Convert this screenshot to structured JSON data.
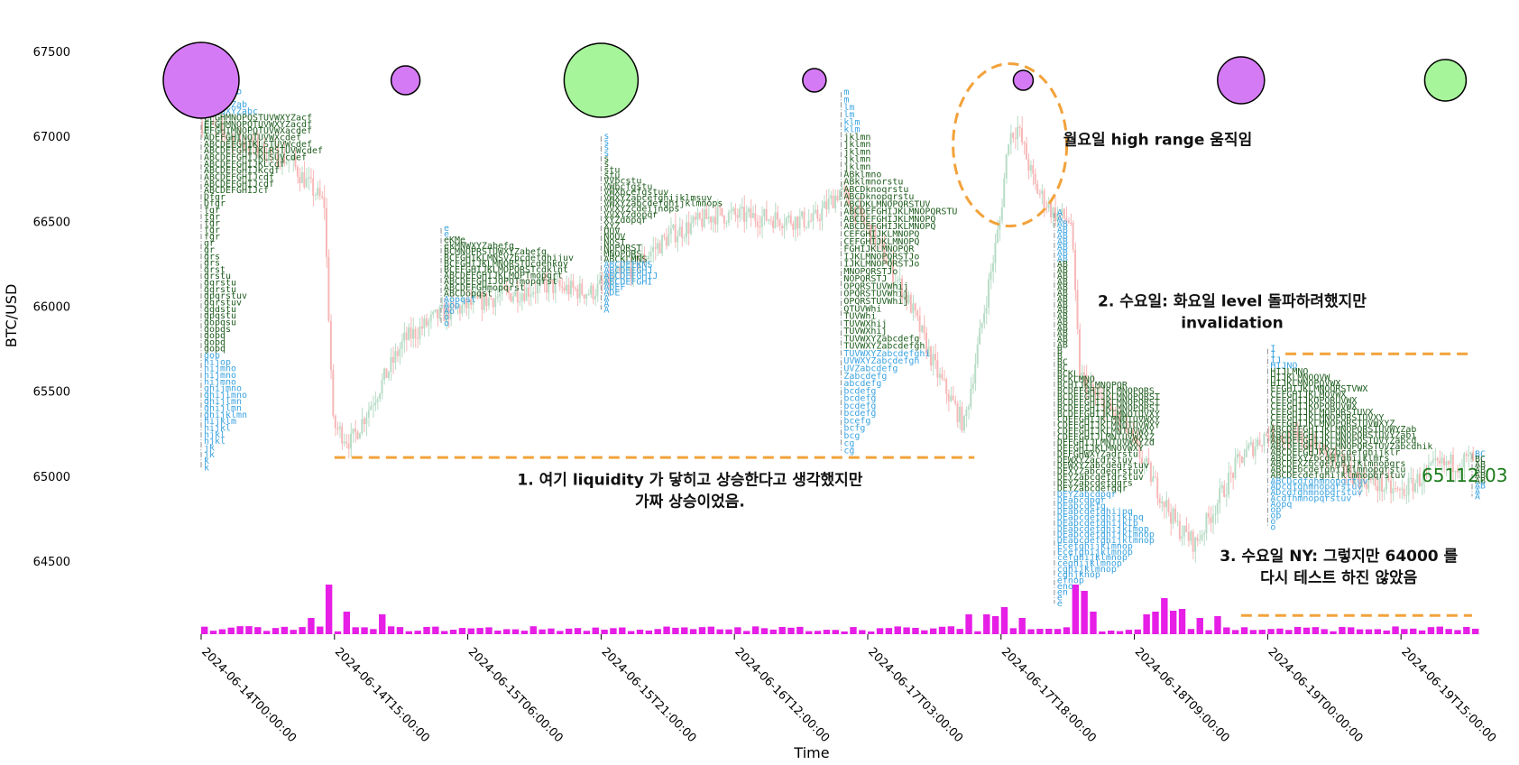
{
  "colors": {
    "bull_candle": "#b7dcc6",
    "bear_candle": "#f7b7b7",
    "volume": "#e61ee6",
    "tpo_blue": "#3aa3e0",
    "tpo_green": "#1c5c1c",
    "poc_line": "#8f8f8f",
    "level": "#f2a23a",
    "circle_purple": "#d57af5",
    "circle_green": "#a6f59a",
    "price_label": "#1a7a1a"
  },
  "chart_data": {
    "type": "candlestick",
    "xlabel": "Time",
    "ylabel": "BTC/USD",
    "ylim": [
      64080,
      67580
    ],
    "y_ticks": [
      64500,
      65000,
      65500,
      66000,
      66500,
      67000,
      67500
    ],
    "x_ticks": [
      "2024-06-14T00:00:00",
      "2024-06-14T15:00:00",
      "2024-06-15T06:00:00",
      "2024-06-15T21:00:00",
      "2024-06-16T12:00:00",
      "2024-06-17T03:00:00",
      "2024-06-17T18:00:00",
      "2024-06-18T09:00:00",
      "2024-06-19T00:00:00",
      "2024-06-19T15:00:00"
    ],
    "x_start": "2024-06-14T00:00:00",
    "x_end": "2024-06-19T23:00:00",
    "price_path": [
      [
        "2024-06-14T00:00:00",
        67080
      ],
      [
        "2024-06-14T05:00:00",
        66960
      ],
      [
        "2024-06-14T10:00:00",
        66860
      ],
      [
        "2024-06-14T14:00:00",
        66600
      ],
      [
        "2024-06-14T15:00:00",
        65300
      ],
      [
        "2024-06-14T17:00:00",
        65200
      ],
      [
        "2024-06-14T20:00:00",
        65500
      ],
      [
        "2024-06-14T23:00:00",
        65800
      ],
      [
        "2024-06-15T03:00:00",
        65950
      ],
      [
        "2024-06-15T09:00:00",
        66050
      ],
      [
        "2024-06-15T15:00:00",
        66120
      ],
      [
        "2024-06-15T20:00:00",
        66080
      ],
      [
        "2024-06-16T00:00:00",
        66200
      ],
      [
        "2024-06-16T05:00:00",
        66420
      ],
      [
        "2024-06-16T10:00:00",
        66540
      ],
      [
        "2024-06-16T16:00:00",
        66520
      ],
      [
        "2024-06-16T21:00:00",
        66500
      ],
      [
        "2024-06-17T00:00:00",
        66680
      ],
      [
        "2024-06-17T04:00:00",
        66400
      ],
      [
        "2024-06-17T08:00:00",
        66000
      ],
      [
        "2024-06-17T11:00:00",
        65600
      ],
      [
        "2024-06-17T14:00:00",
        65300
      ],
      [
        "2024-06-17T16:00:00",
        65900
      ],
      [
        "2024-06-17T18:00:00",
        66500
      ],
      [
        "2024-06-17T19:00:00",
        67000
      ],
      [
        "2024-06-17T20:00:00",
        67050
      ],
      [
        "2024-06-17T22:00:00",
        66700
      ],
      [
        "2024-06-18T00:00:00",
        66550
      ],
      [
        "2024-06-18T02:00:00",
        66500
      ],
      [
        "2024-06-18T03:00:00",
        65600
      ],
      [
        "2024-06-18T05:00:00",
        65450
      ],
      [
        "2024-06-18T08:00:00",
        65300
      ],
      [
        "2024-06-18T10:00:00",
        65100
      ],
      [
        "2024-06-18T12:00:00",
        64900
      ],
      [
        "2024-06-18T14:00:00",
        64700
      ],
      [
        "2024-06-18T16:00:00",
        64600
      ],
      [
        "2024-06-18T18:00:00",
        64800
      ],
      [
        "2024-06-18T21:00:00",
        65100
      ],
      [
        "2024-06-19T00:00:00",
        65250
      ],
      [
        "2024-06-19T05:00:00",
        65200
      ],
      [
        "2024-06-19T10:00:00",
        65000
      ],
      [
        "2024-06-19T15:00:00",
        64900
      ],
      [
        "2024-06-19T19:00:00",
        65050
      ],
      [
        "2024-06-19T23:00:00",
        65100
      ]
    ],
    "volume_spikes": [
      [
        "2024-06-14T12:00:00",
        18
      ],
      [
        "2024-06-14T14:00:00",
        55
      ],
      [
        "2024-06-14T16:00:00",
        25
      ],
      [
        "2024-06-14T20:00:00",
        22
      ],
      [
        "2024-06-17T14:00:00",
        22
      ],
      [
        "2024-06-17T16:00:00",
        22
      ],
      [
        "2024-06-17T17:00:00",
        20
      ],
      [
        "2024-06-17T18:00:00",
        30
      ],
      [
        "2024-06-17T20:00:00",
        18
      ],
      [
        "2024-06-18T02:00:00",
        55
      ],
      [
        "2024-06-18T03:00:00",
        48
      ],
      [
        "2024-06-18T04:00:00",
        25
      ],
      [
        "2024-06-18T10:00:00",
        22
      ],
      [
        "2024-06-18T11:00:00",
        25
      ],
      [
        "2024-06-18T12:00:00",
        40
      ],
      [
        "2024-06-18T13:00:00",
        26
      ],
      [
        "2024-06-18T14:00:00",
        28
      ],
      [
        "2024-06-18T16:00:00",
        18
      ],
      [
        "2024-06-18T18:00:00",
        20
      ]
    ],
    "profiles": [
      {
        "time": "2024-06-14T00:00:00",
        "top": 67420,
        "bottom": 65050,
        "poc": 66650,
        "rows": [
          "b",
          "ab",
          "abb",
          "QYab",
          "OPQYZab",
          "QYZab",
          "OPQXYZab",
          "LMNQXYZabc",
          "EFGHMNOPQSTUVWXYZacf",
          "EFGHMNOPQTUVWXYZacdf",
          "EFGHIMNOPQTUVWXacdef",
          "ADEFGHINOTUVWXcdef",
          "ABCDEFGHIKLSTUVWcdef",
          "ABCDEFGHIJKLRSTUVWcdef",
          "ABCDEFGHIJKLSUVcdef",
          "ABCDEFGHIJKLcdf",
          "ABCDEFGHIJKcdf",
          "ABCDEFGHIJcdf",
          "ABCDEFGHIJcdf",
          "ABCDEFGHIJcf",
          "Dfgr",
          "Dfgr",
          "fgr",
          "fgr",
          "fgr",
          "fgr",
          "fgr",
          "gr",
          "gr",
          "grs",
          "grs",
          "grst",
          "grstu",
          "gqrstu",
          "gqrstu",
          "gpqrstuv",
          "gqrstuv",
          "gqdstu",
          "gpqstu",
          "gopqsu",
          "gopqs",
          "gopq",
          "gopq",
          "gopq",
          "gop",
          "hijop",
          "hijmno",
          "hijmno",
          "hijmno",
          "ghijmno",
          "ghijlmno",
          "ghijlmn",
          "ghijlmn",
          "ghijklmn",
          "hijklm",
          "hijkl",
          "hjkl",
          "hjkl",
          "jk",
          "jk",
          "k",
          "k"
        ]
      },
      {
        "time": "2024-06-15T03:00:00",
        "top": 66460,
        "bottom": 65900,
        "poc": 66150,
        "rows": [
          "e",
          "e",
          "eKMe",
          "ekMNWXYZabefg",
          "BCMNOPRSTUWXYZabefg",
          "BCFGHIKLMNSVZbcdefghijuv",
          "BCFGHIJKLMNQRSTUcdehkuv",
          "BCEFGHIJKLMOPQRSTcdklnt",
          "ABCDEFGHIJKLMOPTmopqrt",
          "ABCDEFGHIJOPQTmopqrst",
          "ABCDEFGHmopqrst",
          "ABCDopqst",
          "Aopqst",
          "Aop",
          "Ao",
          "o",
          "o"
        ]
      },
      {
        "time": "2024-06-15T21:00:00",
        "top": 67000,
        "bottom": 65980,
        "poc": 66500,
        "rows": [
          "s",
          "s",
          "s",
          "s",
          "s",
          "s",
          "stu",
          "stu",
          "VVbcstu",
          "VWbcfgstu",
          "VWXbcefgstuv",
          "VWXYZabcefghijklmsuv",
          "VWXYZabcdefghijklmnops",
          "VVXYZcdeijnops",
          "VVXYZdopqr",
          "XYZdopqr",
          "XYZ",
          "OUV",
          "NOUV",
          "NOST",
          "NOPQRST",
          "MNOPQRS",
          "ABCKLMNS",
          "ABCDEFKNS",
          "ABCDEFGHJ",
          "ABCDEFGHIJ",
          "ABCDEFGHI",
          "ADEF",
          "ADE",
          "A",
          "A",
          "A"
        ]
      },
      {
        "time": "2024-06-17T00:00:00",
        "top": 67260,
        "bottom": 65150,
        "poc": 67260,
        "rows": [
          "m",
          "m",
          "lm",
          "lm",
          "klm",
          "klm",
          "jklmn",
          "jklmn",
          "jklmn",
          "jklmn",
          "jklmn",
          "ABklmno",
          "ABklmnorstu",
          "ABCDknoqrstu",
          "ABCDknopqrstu",
          "ABCDKLMNOPQRSTUV",
          "ABCDEFGHIJKLMNOPQRSTU",
          "ABCDEFGHIJKLMNOPQ",
          "ABCDEFGHIJKLMNOPQ",
          "CEFGHIJKLMNOPQ",
          "CEFGHIJKLMNOPQ",
          "FGHIJKLMNOPQR",
          "IJKLMNOPQRSTJo",
          "IJKLMNOPQRSTJo",
          "MNOPQRSTJo",
          "NOPQRSTJ",
          "OPQRSTUVWhij",
          "OPQRSTUVWhij",
          "OPQRSTUVWhij",
          "QTUVWhi",
          "TUVWhi",
          "TUVWXhij",
          "TUVWXhij",
          "TUVWXYZabcdefg",
          "TUVWXYZabcdefgh",
          "TUVWXYZabcdefghi",
          "UVWXYZabcdefgh",
          "UVZabcdefg",
          "Zabcdefg",
          "abcdefg",
          "bcdefg",
          "bcdefg",
          "bcdefg",
          "bcdefg",
          "bcefg",
          "bcfg",
          "bcg",
          "cg",
          "cg"
        ]
      },
      {
        "time": "2024-06-18T00:00:00",
        "top": 66550,
        "bottom": 64250,
        "poc": 65550,
        "rows": [
          "A",
          "A",
          "AB",
          "AB",
          "AB",
          "AB",
          "AB",
          "AB",
          "AB",
          "AB",
          "AB",
          "AB",
          "AB",
          "AB",
          "AB",
          "AB",
          "AB",
          "AB",
          "AB",
          "AB",
          "AB",
          "AB",
          "AB",
          "AB",
          "B",
          "B",
          "BC",
          "BC",
          "BCKL",
          "BCKLMNO",
          "BCHIJKLMNOPQR",
          "BCDEFGHIJKLMNOPQRS",
          "BCDEFGHIJKLMNOPQRST",
          "BCDEFGHIJKLMNOPQRST",
          "BCDEFGHIJKLMNOPQRST",
          "BCDEFGHIJKLMNOTUVXY",
          "CDEFGHIJKLMNOTUVWXY",
          "CDEFGHIJKLMNOTUVWXY",
          "CDEFGHIJKLMNTUVWXY",
          "CDEFGHIJLMNTUVWXYZ",
          "DEFGHIJLMNTUVWXYZd",
          "DEFGHIJKLMNOVWXY",
          "DEFGHWXYZadrstu",
          "DEWXYZacdrstuv",
          "DEWXYZabcdeqrstuv",
          "DEXYZabcdeqrstuv",
          "DEYZabcdefqrstuv",
          "DEYZabcdefgqrs",
          "DEYZabcdefgqr",
          "DEYZabcdpqr",
          "DEabcdpqr",
          "DEabcdefg",
          "DEabcdefghijpq",
          "DEabcdefghijklpq",
          "DEabcdefghijklp",
          "DEabcdefghijklmop",
          "DEabcdefghijklmnop",
          "DEabcdefghijklmnop",
          "Ecefghijklmnop",
          "Ecefghijklmnop",
          "cefghijklmnop",
          "ceghijklmnop",
          "cghijklmnop",
          "cghjknop",
          "efnop",
          "eno",
          "en",
          "e",
          "e"
        ]
      },
      {
        "time": "2024-06-19T00:00:00",
        "top": 65750,
        "bottom": 64700,
        "poc": 65650,
        "rows": [
          "I",
          "I",
          "IJ",
          "HIJNO",
          "HIJLMNO",
          "HIJKLMNOQVW",
          "HIJKLMNOPQVWX",
          "EFGHIJKLMNOQRSTVWX",
          "CEFGHIJKLMOVWX",
          "CEFGHIJKOPQRUVWX",
          "CEFGHIJKOPQRUVWX",
          "CEFGHIJKLMOPQRSTUVX",
          "CEFGHIJKLMNOPQRSTUVXY",
          "CEFGHIJKLMNOPQRSTUVWXYZ",
          "ABCDEFGHIJKLMNOPQRSTUVWYZab",
          "ABCDEFGHIJKLMNOPQRSTUVYZabi",
          "ABCDEFGHIJKLMNOPQSTUVYZabcd",
          "ABCDEFGHIJKLMNOPQRSTUVZabcdhik",
          "ABCDEFGHJXYZbcdefghijklr",
          "ABCDEXYZbcdefghijklmrs",
          "ABCDEXZbcdefghijklmnopqrs",
          "ABCDEbcdefghijklmnopqrstu",
          "ABCDEcdefghijklmnopqrstuv",
          "ABCDcdfghmnopqrtuv",
          "ADcdfghmnopqrstuv",
          "ADcdfghmnopqrstuv",
          "Acdfhmnopqrstuv",
          "Aopq",
          "op",
          "op",
          "o",
          "o"
        ]
      },
      {
        "time": "2024-06-19T23:00:00",
        "top": 65130,
        "bottom": 64880,
        "poc": 64950,
        "rows": [
          "BC",
          "BC",
          "AB",
          "AB",
          "AB",
          "AB",
          "AB",
          "A",
          "A"
        ]
      }
    ],
    "circles": [
      {
        "time": "2024-06-14T00:00:00",
        "price": 67330,
        "radius": 42,
        "color": "purple"
      },
      {
        "time": "2024-06-14T23:00:00",
        "price": 67330,
        "radius": 16,
        "color": "purple"
      },
      {
        "time": "2024-06-15T21:00:00",
        "price": 67330,
        "radius": 41,
        "color": "green"
      },
      {
        "time": "2024-06-16T21:00:00",
        "price": 67330,
        "radius": 13,
        "color": "purple"
      },
      {
        "time": "2024-06-17T20:30:00",
        "price": 67330,
        "radius": 11,
        "color": "purple"
      },
      {
        "time": "2024-06-18T21:00:00",
        "price": 67330,
        "radius": 26,
        "color": "purple"
      },
      {
        "time": "2024-06-19T20:00:00",
        "price": 67330,
        "radius": 23,
        "color": "green"
      }
    ],
    "levels": [
      {
        "price": 65110,
        "from": "2024-06-14T15:00:00",
        "to": "2024-06-17T15:00:00"
      },
      {
        "price": 65720,
        "from": "2024-06-19T02:00:00",
        "to": "2024-06-19T23:00:00"
      },
      {
        "price": 64180,
        "from": "2024-06-18T21:00:00",
        "to": "2024-06-19T23:00:00"
      }
    ],
    "highlight_ellipse": {
      "time": "2024-06-17T19:00:00",
      "price": 66950,
      "rx": 63,
      "ry": 90
    },
    "last_price": {
      "label": "65112.03",
      "price": 65000,
      "time": "2024-06-19T23:00:00"
    },
    "annotations": [
      {
        "lines": [
          "월요일 high range 움직임"
        ],
        "time": "2024-06-18T01:00:00",
        "price": 66950,
        "anchor": "start"
      },
      {
        "lines": [
          "2. 수요일: 화요일 level 돌파하려했지만",
          "invalidation"
        ],
        "time": "2024-06-18T20:00:00",
        "price": 66000,
        "anchor": "middle"
      },
      {
        "lines": [
          "1. 여기 liquidity 가 닿히고 상승한다고 생각했지만",
          "가짜 상승이었음."
        ],
        "time": "2024-06-16T07:00:00",
        "price": 64950,
        "anchor": "middle"
      },
      {
        "lines": [
          "3. 수요일 NY: 그렇지만 64000 를",
          "다시 테스트 하진 않았음"
        ],
        "time": "2024-06-19T08:00:00",
        "price": 64500,
        "anchor": "middle"
      }
    ]
  }
}
